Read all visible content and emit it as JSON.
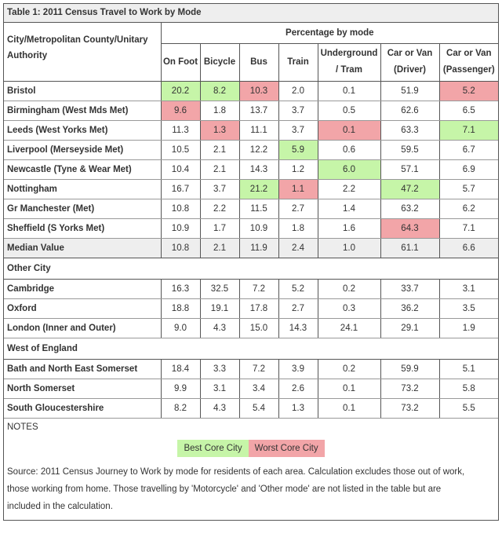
{
  "title": "Table 1: 2011 Census Travel to Work by Mode",
  "header": {
    "authority_line1": "City/Metropolitan County/Unitary",
    "authority_line2": "Authority",
    "percentage_label": "Percentage by mode",
    "modes": [
      {
        "line1": "On Foot",
        "line2": ""
      },
      {
        "line1": "Bicycle",
        "line2": ""
      },
      {
        "line1": "Bus",
        "line2": ""
      },
      {
        "line1": "Train",
        "line2": ""
      },
      {
        "line1": "Underground",
        "line2": "/ Tram"
      },
      {
        "line1": "Car or Van",
        "line2": "(Driver)"
      },
      {
        "line1": "Car or Van",
        "line2": "(Passenger)"
      }
    ]
  },
  "core_cities": [
    {
      "name": "Bristol",
      "values": [
        "20.2",
        "8.2",
        "10.3",
        "2.0",
        "0.1",
        "51.9",
        "5.2"
      ],
      "highlight": [
        "best",
        "best",
        "worst",
        "",
        "",
        "",
        "worst"
      ]
    },
    {
      "name": "Birmingham (West Mds Met)",
      "values": [
        "9.6",
        "1.8",
        "13.7",
        "3.7",
        "0.5",
        "62.6",
        "6.5"
      ],
      "highlight": [
        "worst",
        "",
        "",
        "",
        "",
        "",
        ""
      ]
    },
    {
      "name": "Leeds (West Yorks Met)",
      "values": [
        "11.3",
        "1.3",
        "11.1",
        "3.7",
        "0.1",
        "63.3",
        "7.1"
      ],
      "highlight": [
        "",
        "worst",
        "",
        "",
        "worst",
        "",
        "best"
      ]
    },
    {
      "name": "Liverpool (Merseyside Met)",
      "values": [
        "10.5",
        "2.1",
        "12.2",
        "5.9",
        "0.6",
        "59.5",
        "6.7"
      ],
      "highlight": [
        "",
        "",
        "",
        "best",
        "",
        "",
        ""
      ]
    },
    {
      "name": "Newcastle (Tyne & Wear Met)",
      "values": [
        "10.4",
        "2.1",
        "14.3",
        "1.2",
        "6.0",
        "57.1",
        "6.9"
      ],
      "highlight": [
        "",
        "",
        "",
        "",
        "best",
        "",
        ""
      ]
    },
    {
      "name": "Nottingham",
      "values": [
        "16.7",
        "3.7",
        "21.2",
        "1.1",
        "2.2",
        "47.2",
        "5.7"
      ],
      "highlight": [
        "",
        "",
        "best",
        "worst",
        "",
        "best",
        ""
      ]
    },
    {
      "name": "Gr Manchester (Met)",
      "values": [
        "10.8",
        "2.2",
        "11.5",
        "2.7",
        "1.4",
        "63.2",
        "6.2"
      ],
      "highlight": [
        "",
        "",
        "",
        "",
        "",
        "",
        ""
      ]
    },
    {
      "name": "Sheffield (S Yorks Met)",
      "values": [
        "10.9",
        "1.7",
        "10.9",
        "1.8",
        "1.6",
        "64.3",
        "7.1"
      ],
      "highlight": [
        "",
        "",
        "",
        "",
        "",
        "worst",
        ""
      ]
    }
  ],
  "median": {
    "name": "Median Value",
    "values": [
      "10.8",
      "2.1",
      "11.9",
      "2.4",
      "1.0",
      "61.1",
      "6.6"
    ]
  },
  "other_city_label": "Other City",
  "other_cities": [
    {
      "name": "Cambridge",
      "values": [
        "16.3",
        "32.5",
        "7.2",
        "5.2",
        "0.2",
        "33.7",
        "3.1"
      ]
    },
    {
      "name": "Oxford",
      "values": [
        "18.8",
        "19.1",
        "17.8",
        "2.7",
        "0.3",
        "36.2",
        "3.5"
      ]
    },
    {
      "name": "London (Inner and Outer)",
      "values": [
        "9.0",
        "4.3",
        "15.0",
        "14.3",
        "24.1",
        "29.1",
        "1.9"
      ]
    }
  ],
  "west_england_label": "West of England",
  "west_england": [
    {
      "name": "Bath and North East Somerset",
      "values": [
        "18.4",
        "3.3",
        "7.2",
        "3.9",
        "0.2",
        "59.9",
        "5.1"
      ]
    },
    {
      "name": "North Somerset",
      "values": [
        "9.9",
        "3.1",
        "3.4",
        "2.6",
        "0.1",
        "73.2",
        "5.8"
      ]
    },
    {
      "name": "South Gloucestershire",
      "values": [
        "8.2",
        "4.3",
        "5.4",
        "1.3",
        "0.1",
        "73.2",
        "5.5"
      ]
    }
  ],
  "notes_label": "NOTES",
  "legend": {
    "best": "Best Core City",
    "worst": "Worst Core City"
  },
  "source_lines": [
    "Source: 2011 Census Journey to Work by mode for residents of each area. Calculation excludes those out of work,",
    "those working from home. Those travelling by 'Motorcycle' and 'Other mode' are not listed in the table but are",
    "included in the calculation."
  ],
  "colors": {
    "best": "#c6f5a8",
    "worst": "#f2a5a8",
    "header_bg": "#eeeeee"
  }
}
